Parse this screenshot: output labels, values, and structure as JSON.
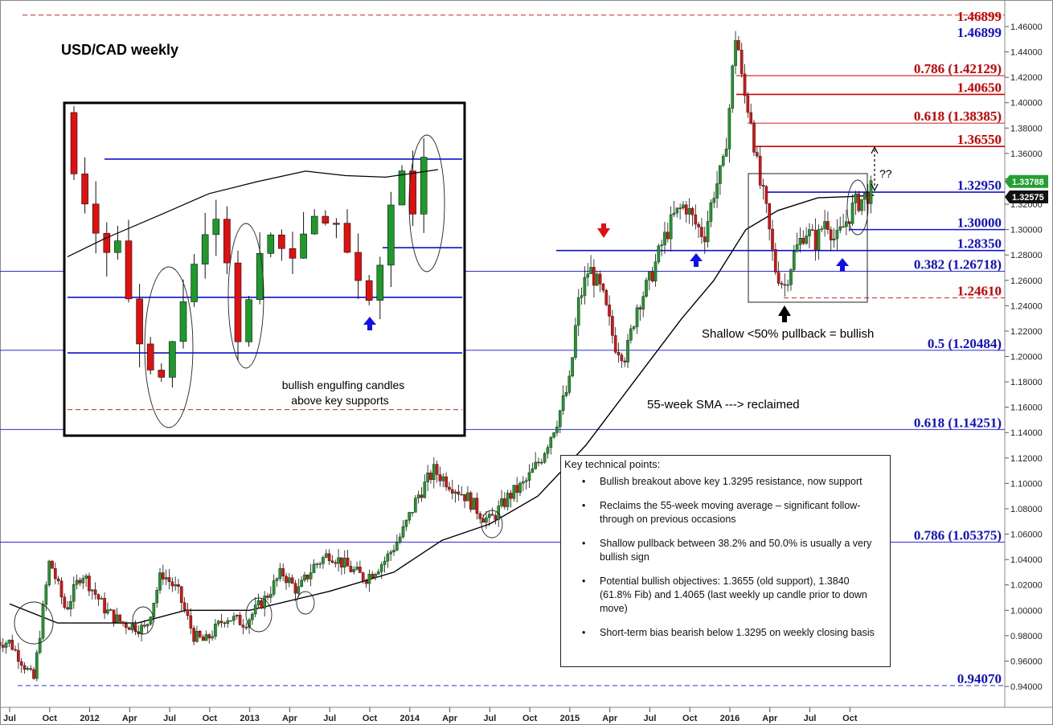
{
  "chart_data": {
    "type": "candlestick",
    "title": "USD/CAD weekly",
    "y_axis": {
      "min": 0.93,
      "max": 1.47,
      "ticks": [
        "0.94000",
        "0.96000",
        "0.98000",
        "1.00000",
        "1.02000",
        "1.04000",
        "1.06000",
        "1.08000",
        "1.10000",
        "1.12000",
        "1.14000",
        "1.16000",
        "1.18000",
        "1.20000",
        "1.22000",
        "1.24000",
        "1.26000",
        "1.28000",
        "1.30000",
        "1.32000",
        "1.34000",
        "1.36000",
        "1.38000",
        "1.40000",
        "1.42000",
        "1.44000",
        "1.46000"
      ]
    },
    "x_axis": {
      "ticks": [
        "Jul",
        "Oct",
        "2012",
        "Apr",
        "Jul",
        "Oct",
        "2013",
        "Apr",
        "Jul",
        "Oct",
        "2014",
        "Apr",
        "Jul",
        "Oct",
        "2015",
        "Apr",
        "Jul",
        "Oct",
        "2016",
        "Apr",
        "Jul",
        "Oct"
      ]
    },
    "price_path": [
      [
        2011.5,
        0.975
      ],
      [
        2011.65,
        0.945
      ],
      [
        2011.75,
        1.04
      ],
      [
        2011.85,
        1.0
      ],
      [
        2011.95,
        1.03
      ],
      [
        2012.1,
        1.0
      ],
      [
        2012.2,
        0.99
      ],
      [
        2012.35,
        0.985
      ],
      [
        2012.45,
        1.03
      ],
      [
        2012.55,
        1.015
      ],
      [
        2012.65,
        0.98
      ],
      [
        2012.72,
        0.975
      ],
      [
        2012.85,
        0.995
      ],
      [
        2012.97,
        0.99
      ],
      [
        2013.1,
        1.01
      ],
      [
        2013.2,
        1.03
      ],
      [
        2013.3,
        1.015
      ],
      [
        2013.4,
        1.035
      ],
      [
        2013.5,
        1.045
      ],
      [
        2013.6,
        1.035
      ],
      [
        2013.72,
        1.025
      ],
      [
        2013.85,
        1.04
      ],
      [
        2013.95,
        1.06
      ],
      [
        2014.05,
        1.09
      ],
      [
        2014.15,
        1.11
      ],
      [
        2014.25,
        1.1
      ],
      [
        2014.35,
        1.09
      ],
      [
        2014.45,
        1.075
      ],
      [
        2014.5,
        1.07
      ],
      [
        2014.62,
        1.09
      ],
      [
        2014.72,
        1.1
      ],
      [
        2014.82,
        1.12
      ],
      [
        2014.92,
        1.15
      ],
      [
        2015.0,
        1.18
      ],
      [
        2015.05,
        1.24
      ],
      [
        2015.12,
        1.27
      ],
      [
        2015.2,
        1.25
      ],
      [
        2015.28,
        1.21
      ],
      [
        2015.35,
        1.2
      ],
      [
        2015.42,
        1.24
      ],
      [
        2015.5,
        1.26
      ],
      [
        2015.58,
        1.29
      ],
      [
        2015.65,
        1.31
      ],
      [
        2015.72,
        1.32
      ],
      [
        2015.78,
        1.305
      ],
      [
        2015.84,
        1.295
      ],
      [
        2015.9,
        1.33
      ],
      [
        2015.96,
        1.35
      ],
      [
        2016.0,
        1.4
      ],
      [
        2016.04,
        1.46
      ],
      [
        2016.08,
        1.41
      ],
      [
        2016.13,
        1.39
      ],
      [
        2016.18,
        1.34
      ],
      [
        2016.22,
        1.32
      ],
      [
        2016.28,
        1.27
      ],
      [
        2016.34,
        1.255
      ],
      [
        2016.4,
        1.28
      ],
      [
        2016.47,
        1.3
      ],
      [
        2016.54,
        1.29
      ],
      [
        2016.6,
        1.31
      ],
      [
        2016.66,
        1.29
      ],
      [
        2016.72,
        1.305
      ],
      [
        2016.78,
        1.32
      ],
      [
        2016.84,
        1.325
      ],
      [
        2016.9,
        1.333
      ]
    ],
    "sma55_path": [
      [
        2011.5,
        1.005
      ],
      [
        2011.8,
        0.99
      ],
      [
        2012.3,
        0.99
      ],
      [
        2012.6,
        1.0
      ],
      [
        2013.0,
        1.0
      ],
      [
        2013.5,
        1.015
      ],
      [
        2013.9,
        1.03
      ],
      [
        2014.2,
        1.055
      ],
      [
        2014.5,
        1.068
      ],
      [
        2014.8,
        1.09
      ],
      [
        2015.1,
        1.13
      ],
      [
        2015.4,
        1.18
      ],
      [
        2015.7,
        1.23
      ],
      [
        2015.9,
        1.26
      ],
      [
        2016.1,
        1.3
      ],
      [
        2016.3,
        1.315
      ],
      [
        2016.55,
        1.325
      ],
      [
        2016.75,
        1.326
      ],
      [
        2016.9,
        1.327
      ]
    ],
    "levels": [
      {
        "value": 1.46899,
        "label": "1.46899",
        "color": "#cc0000",
        "style": "dashed"
      },
      {
        "value": 1.46899,
        "label": "1.46899",
        "color": "#1010cc",
        "style": "dashed"
      },
      {
        "value": 1.42129,
        "label": "0.786 (1.42129)",
        "color": "#cc0000",
        "style": "solid"
      },
      {
        "value": 1.4065,
        "label": "1.40650",
        "color": "#cc0000",
        "style": "solid"
      },
      {
        "value": 1.38385,
        "label": "0.618 (1.38385)",
        "color": "#cc0000",
        "style": "solid"
      },
      {
        "value": 1.3655,
        "label": "1.36550",
        "color": "#cc0000",
        "style": "solid"
      },
      {
        "value": 1.3295,
        "label": "1.32950",
        "color": "#1010cc",
        "style": "solid"
      },
      {
        "value": 1.3,
        "label": "1.30000",
        "color": "#1010cc",
        "style": "solid"
      },
      {
        "value": 1.2835,
        "label": "1.28350",
        "color": "#1010cc",
        "style": "solid"
      },
      {
        "value": 1.26718,
        "label": "0.382 (1.26718)",
        "color": "#1010cc",
        "style": "solid"
      },
      {
        "value": 1.2461,
        "label": "1.24610",
        "color": "#cc0000",
        "style": "dashed"
      },
      {
        "value": 1.20484,
        "label": "0.5 (1.20484)",
        "color": "#1010cc",
        "style": "solid"
      },
      {
        "value": 1.14251,
        "label": "0.618 (1.14251)",
        "color": "#1010cc",
        "style": "solid"
      },
      {
        "value": 1.05375,
        "label": "0.786 (1.05375)",
        "color": "#1010cc",
        "style": "solid"
      },
      {
        "value": 0.9407,
        "label": "0.94070",
        "color": "#1010cc",
        "style": "dashed"
      }
    ],
    "price_tags": [
      {
        "value": 1.33788,
        "label": "1.33788",
        "color": "#22a032"
      },
      {
        "value": 1.32575,
        "label": "1.32575",
        "color": "#111111"
      }
    ],
    "annotations": {
      "question": "??",
      "pullback": "Shallow  <50% pullback = bullish",
      "sma": "55-week SMA  ---> reclaimed",
      "engulfing_line1": "bullish engulfing candles",
      "engulfing_line2": "above key supports"
    },
    "colors": {
      "up": "#1e9a2a",
      "down": "#e01010",
      "sma": "#000000",
      "blue": "#1010cc",
      "red": "#cc0000"
    }
  },
  "key_points": {
    "title": "Key technical points:",
    "items": [
      "Bullish breakout above key 1.3295 resistance, now support",
      "Reclaims the 55-week moving average – significant follow-through on previous occasions",
      "Shallow pullback between 38.2% and 50.0% is usually a very bullish sign",
      "Potential bullish objectives: 1.3655 (old support), 1.3840 (61.8% Fib) and 1.4065 (last weekly up candle prior to down move)",
      "Short-term bias bearish below 1.3295 on weekly closing basis"
    ]
  }
}
